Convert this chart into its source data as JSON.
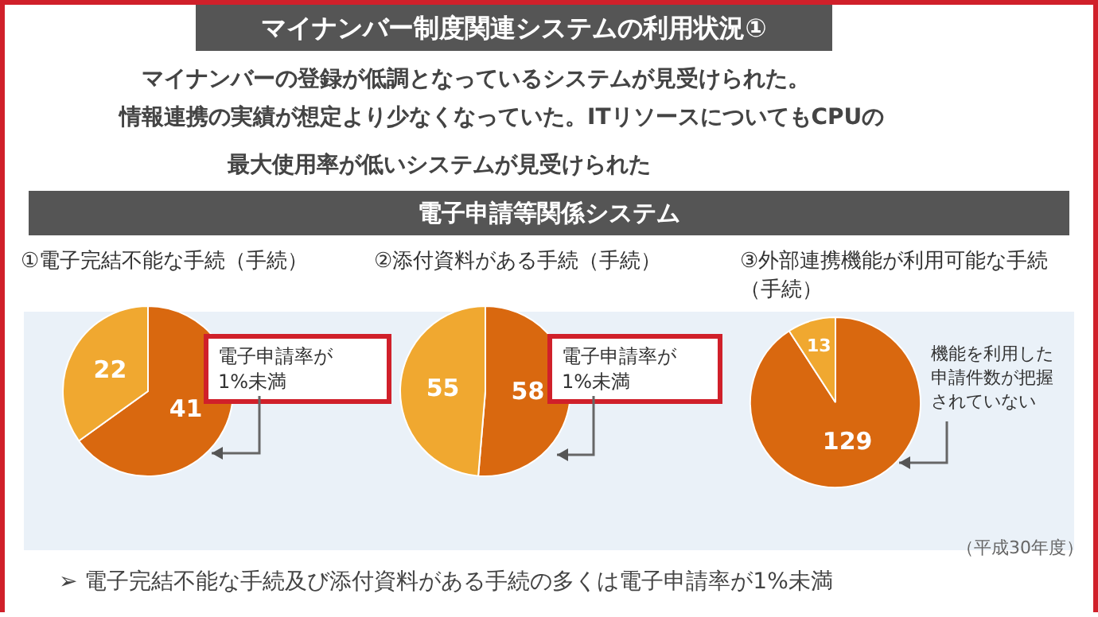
{
  "chart_data": [
    {
      "type": "pie",
      "title": "①電子完結不能な手続（手続）",
      "categories": [
        null,
        null
      ],
      "values": [
        41,
        22
      ],
      "colors": [
        "#d9680f",
        "#f0a830"
      ],
      "data_labels": true,
      "legend": false,
      "annotations": [
        "マイナンバー制度関連システムの利用状況①",
        "マイナンバーの登録が低調となっているシステムが見受けられた。",
        "情報連携の実績が想定より少なくなっていた。ITリソースについてもCPUの",
        "最大使用率が低いシステムが見受けられた",
        "電子申請等関係システム",
        "電子申請率が\n1%未満"
      ]
    },
    {
      "type": "pie",
      "title": "②添付資料がある手続（手続）",
      "categories": [
        null,
        null
      ],
      "values": [
        58,
        55
      ],
      "colors": [
        "#d9680f",
        "#f0a830"
      ],
      "data_labels": true,
      "legend": false,
      "annotations": [
        "電子申請率が\n1%未満"
      ]
    },
    {
      "type": "pie",
      "title": "③外部連携機能が利用可能な手続（手続）",
      "categories": [
        null,
        null
      ],
      "values": [
        129,
        13
      ],
      "colors": [
        "#d9680f",
        "#f0a830"
      ],
      "data_labels": true,
      "legend": false,
      "annotations": [
        "機能を利用した申請件数が把握されていない",
        "（平成30年度）",
        "➢ 電子完結不能な手続及び添付資料がある手続の多くは電子申請率が1%未満"
      ]
    }
  ]
}
